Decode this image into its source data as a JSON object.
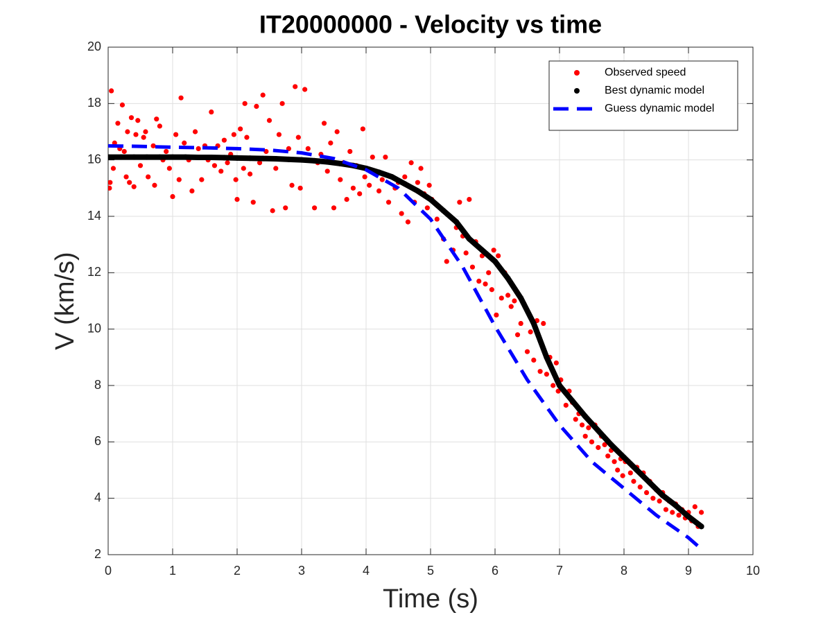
{
  "chart_data": {
    "type": "scatter",
    "title": "IT20000000 - Velocity vs time",
    "xlabel": "Time (s)",
    "ylabel": "V (km/s)",
    "xlim": [
      0,
      10
    ],
    "xticks": [
      0,
      1,
      2,
      3,
      4,
      5,
      6,
      7,
      8,
      9,
      10
    ],
    "ylim": [
      2,
      20
    ],
    "yticks": [
      2,
      4,
      6,
      8,
      10,
      12,
      14,
      16,
      18,
      20
    ],
    "grid": true,
    "legend": "upper right",
    "series": [
      {
        "name": "Observed speed",
        "color": "#ff0000",
        "style": "dots",
        "x": [
          0.02,
          0.03,
          0.04,
          0.05,
          0.08,
          0.1,
          0.12,
          0.15,
          0.18,
          0.22,
          0.25,
          0.28,
          0.3,
          0.33,
          0.36,
          0.4,
          0.43,
          0.46,
          0.5,
          0.55,
          0.58,
          0.62,
          0.65,
          0.7,
          0.72,
          0.75,
          0.8,
          0.85,
          0.9,
          0.95,
          0.98,
          1.0,
          1.05,
          1.1,
          1.13,
          1.18,
          1.25,
          1.3,
          1.35,
          1.4,
          1.45,
          1.5,
          1.55,
          1.6,
          1.65,
          1.7,
          1.75,
          1.8,
          1.85,
          1.9,
          1.95,
          1.98,
          2.0,
          2.05,
          2.1,
          2.15,
          2.12,
          2.2,
          2.25,
          2.3,
          2.35,
          2.4,
          2.45,
          2.5,
          2.55,
          2.6,
          2.65,
          2.7,
          2.75,
          2.8,
          2.85,
          2.9,
          2.95,
          2.98,
          3.05,
          3.1,
          3.2,
          3.25,
          3.3,
          3.35,
          3.4,
          3.45,
          3.5,
          3.55,
          3.6,
          3.65,
          3.7,
          3.75,
          3.8,
          3.85,
          3.9,
          3.95,
          3.98,
          4.05,
          4.1,
          4.15,
          4.2,
          4.25,
          4.3,
          4.35,
          4.4,
          4.45,
          4.5,
          4.55,
          4.6,
          4.65,
          4.7,
          4.75,
          4.8,
          4.85,
          4.9,
          4.95,
          4.98,
          5.02,
          5.1,
          5.15,
          5.2,
          5.25,
          5.3,
          5.35,
          5.4,
          5.45,
          5.5,
          5.55,
          5.6,
          5.65,
          5.7,
          5.75,
          5.8,
          5.85,
          5.9,
          5.95,
          5.98,
          6.02,
          6.05,
          6.1,
          6.15,
          6.2,
          6.25,
          6.3,
          6.35,
          6.4,
          6.45,
          6.5,
          6.55,
          6.6,
          6.65,
          6.7,
          6.75,
          6.8,
          6.85,
          6.9,
          6.95,
          6.98,
          7.02,
          7.1,
          7.15,
          7.2,
          7.25,
          7.3,
          7.35,
          7.4,
          7.45,
          7.5,
          7.55,
          7.6,
          7.65,
          7.7,
          7.75,
          7.8,
          7.85,
          7.9,
          7.95,
          7.98,
          8.02,
          8.1,
          8.15,
          8.2,
          8.25,
          8.3,
          8.35,
          8.4,
          8.45,
          8.5,
          8.55,
          8.6,
          8.65,
          8.7,
          8.75,
          8.8,
          8.85,
          8.9,
          8.95,
          9.0,
          9.05,
          9.1,
          9.15,
          9.2
        ],
        "values": [
          15.0,
          15.2,
          16.1,
          18.45,
          15.7,
          16.6,
          16.1,
          17.3,
          16.4,
          17.95,
          16.3,
          15.4,
          17.0,
          15.2,
          17.5,
          15.05,
          16.9,
          17.4,
          15.8,
          16.8,
          17.0,
          15.4,
          16.1,
          16.5,
          15.1,
          17.45,
          17.2,
          16.0,
          16.3,
          15.7,
          16.1,
          14.7,
          16.9,
          15.3,
          18.2,
          16.6,
          16.0,
          14.9,
          17.0,
          16.4,
          15.3,
          16.5,
          16.0,
          17.7,
          15.8,
          16.5,
          15.6,
          16.7,
          15.9,
          16.2,
          16.9,
          15.3,
          14.6,
          17.1,
          15.7,
          16.8,
          18.0,
          15.5,
          14.5,
          17.9,
          15.9,
          18.3,
          16.3,
          17.4,
          14.2,
          15.7,
          16.9,
          18.0,
          14.3,
          16.4,
          15.1,
          18.6,
          16.8,
          15.0,
          18.5,
          16.4,
          14.3,
          15.9,
          16.2,
          17.3,
          15.6,
          16.6,
          14.3,
          17.0,
          15.3,
          15.9,
          14.6,
          16.3,
          15.0,
          15.8,
          14.8,
          17.1,
          15.4,
          15.1,
          16.1,
          15.6,
          14.9,
          15.3,
          16.1,
          14.5,
          15.4,
          15.0,
          15.2,
          14.1,
          15.4,
          13.8,
          15.9,
          14.5,
          15.2,
          15.7,
          14.8,
          14.3,
          15.1,
          14.6,
          13.9,
          14.3,
          13.2,
          12.4,
          14.0,
          12.8,
          13.6,
          14.5,
          13.3,
          12.7,
          14.6,
          12.2,
          13.1,
          11.7,
          12.6,
          11.6,
          12.0,
          11.4,
          12.8,
          10.5,
          12.6,
          11.1,
          12.0,
          11.2,
          10.8,
          11.0,
          9.8,
          10.2,
          10.9,
          9.2,
          9.9,
          8.9,
          10.3,
          8.5,
          10.2,
          8.4,
          9.0,
          8.0,
          8.8,
          7.8,
          8.2,
          7.3,
          7.8,
          7.4,
          6.8,
          7.0,
          6.6,
          6.2,
          6.5,
          6.0,
          6.6,
          5.8,
          6.2,
          5.9,
          5.5,
          5.7,
          5.3,
          5.0,
          5.4,
          4.8,
          5.3,
          4.9,
          4.6,
          5.1,
          4.4,
          4.9,
          4.2,
          4.6,
          4.0,
          4.3,
          3.9,
          4.2,
          3.6,
          3.9,
          3.5,
          3.8,
          3.4,
          3.6,
          3.3,
          3.5,
          3.2,
          3.7,
          3.0,
          3.5
        ]
      },
      {
        "name": "Best dynamic model",
        "color": "#000000",
        "style": "dots-line",
        "x": [
          0,
          0.2,
          0.4,
          0.6,
          0.8,
          1.0,
          1.2,
          1.4,
          1.6,
          1.8,
          2.0,
          2.2,
          2.4,
          2.6,
          2.8,
          3.0,
          3.2,
          3.4,
          3.6,
          3.8,
          4.0,
          4.2,
          4.4,
          4.6,
          4.8,
          5.0,
          5.2,
          5.4,
          5.6,
          5.8,
          6.0,
          6.2,
          6.4,
          6.6,
          6.8,
          7.0,
          7.2,
          7.4,
          7.6,
          7.8,
          8.0,
          8.2,
          8.4,
          8.6,
          8.8,
          9.0,
          9.2
        ],
        "values": [
          16.1,
          16.1,
          16.1,
          16.1,
          16.1,
          16.1,
          16.1,
          16.09,
          16.09,
          16.08,
          16.07,
          16.06,
          16.05,
          16.04,
          16.02,
          16.0,
          15.97,
          15.93,
          15.87,
          15.8,
          15.7,
          15.56,
          15.4,
          15.15,
          14.9,
          14.6,
          14.2,
          13.8,
          13.2,
          12.8,
          12.4,
          11.8,
          11.1,
          10.2,
          9.0,
          8.0,
          7.45,
          6.9,
          6.4,
          5.9,
          5.45,
          5.0,
          4.55,
          4.1,
          3.75,
          3.35,
          3.0
        ]
      },
      {
        "name": "Guess dynamic model",
        "color": "#0000ff",
        "style": "dashed",
        "x": [
          0,
          0.5,
          1,
          1.5,
          2,
          2.5,
          3,
          3.5,
          4,
          4.5,
          5,
          5.5,
          6,
          6.5,
          7,
          7.5,
          8,
          8.5,
          9,
          9.2
        ],
        "values": [
          16.5,
          16.48,
          16.45,
          16.43,
          16.4,
          16.35,
          16.25,
          16.05,
          15.65,
          15.0,
          13.9,
          12.2,
          10.1,
          8.2,
          6.6,
          5.3,
          4.35,
          3.4,
          2.6,
          2.2
        ]
      }
    ]
  }
}
